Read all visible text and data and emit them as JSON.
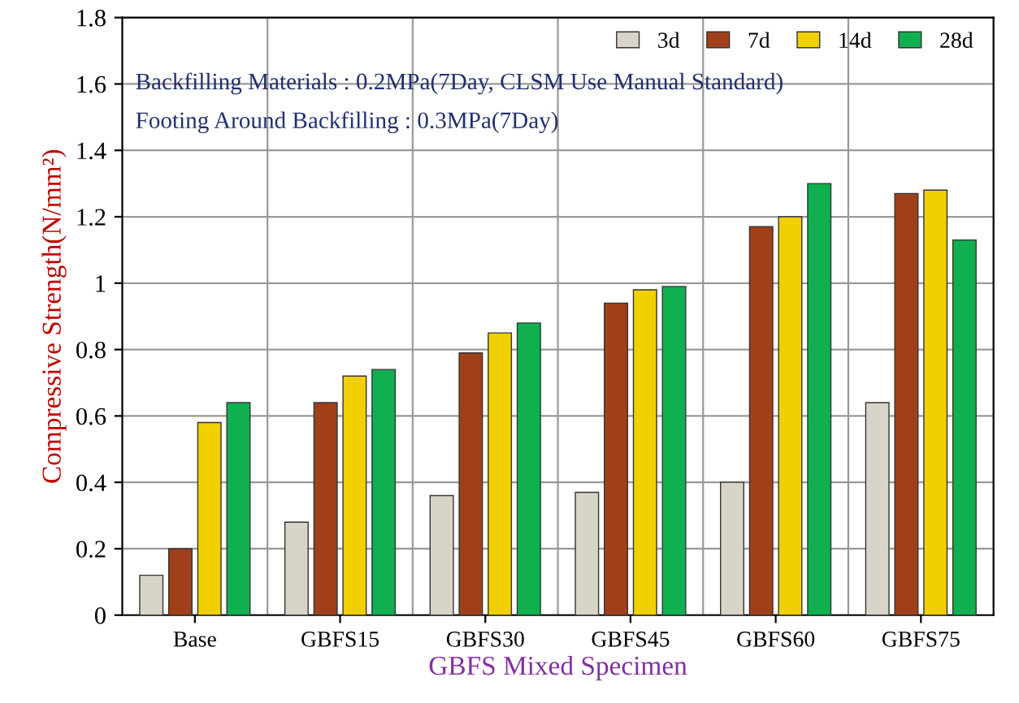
{
  "chart_data": {
    "type": "bar",
    "xlabel": "GBFS Mixed Specimen",
    "ylabel": "Compressive Strength(N/mm²)",
    "categories": [
      "Base",
      "GBFS15",
      "GBFS30",
      "GBFS45",
      "GBFS60",
      "GBFS75"
    ],
    "series": [
      {
        "name": "3d",
        "color": "#d8d4c8",
        "values": [
          0.12,
          0.28,
          0.36,
          0.37,
          0.4,
          0.64
        ]
      },
      {
        "name": "7d",
        "color": "#a0401a",
        "values": [
          0.2,
          0.64,
          0.79,
          0.94,
          1.17,
          1.27
        ]
      },
      {
        "name": "14d",
        "color": "#f0d000",
        "values": [
          0.58,
          0.72,
          0.85,
          0.98,
          1.2,
          1.28
        ]
      },
      {
        "name": "28d",
        "color": "#10b050",
        "values": [
          0.64,
          0.74,
          0.88,
          0.99,
          1.3,
          1.13
        ]
      }
    ],
    "ylim": [
      0,
      1.8
    ],
    "yticks": [
      0,
      0.2,
      0.4,
      0.6,
      0.8,
      1,
      1.2,
      1.4,
      1.6,
      1.8
    ],
    "grid": true,
    "legend": "top right",
    "annotations": [
      "Backfilling Materials : 0.2MPa(7Day, CLSM Use Manual Standard)",
      "Footing Around Backfilling : 0.3MPa(7Day)"
    ]
  }
}
